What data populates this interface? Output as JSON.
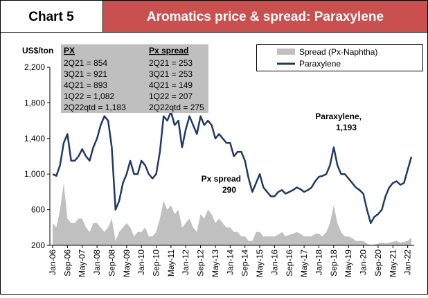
{
  "chart_data": {
    "type": "line",
    "label": "Chart 5",
    "title": "Aromatics price & spread: Paraxylene",
    "y_label": "US$/ton",
    "categories": [
      "Jan-06",
      null,
      null,
      null,
      "Sep-06",
      null,
      null,
      null,
      "May-07",
      null,
      null,
      null,
      "Jan-08",
      null,
      null,
      null,
      "Sep-08",
      null,
      null,
      null,
      "May-09",
      null,
      null,
      null,
      "Jan-10",
      null,
      null,
      null,
      "Sep-10",
      null,
      null,
      null,
      "May-11",
      null,
      null,
      null,
      "Jan-12",
      null,
      null,
      null,
      "Sep-12",
      null,
      null,
      null,
      "May-13",
      null,
      null,
      null,
      "Jan-14",
      null,
      null,
      null,
      "Sep-14",
      null,
      null,
      null,
      "May-15",
      null,
      null,
      null,
      "Jan-16",
      null,
      null,
      null,
      "Sep-16",
      null,
      null,
      null,
      "May-17",
      null,
      null,
      null,
      "Jan-18",
      null,
      null,
      null,
      "Sep-18",
      null,
      null,
      null,
      "May-19",
      null,
      null,
      null,
      "Jan-20",
      null,
      null,
      null,
      "Sep-20",
      null,
      null,
      null,
      "May-21",
      null,
      null,
      null,
      "Jan-22",
      null
    ],
    "series": [
      {
        "name": "Spread (Px-Naphtha)",
        "kind": "area",
        "color": "#c0c0c0",
        "values": [
          450,
          400,
          600,
          900,
          500,
          450,
          450,
          500,
          500,
          400,
          350,
          450,
          450,
          400,
          350,
          400,
          500,
          250,
          350,
          400,
          450,
          400,
          300,
          350,
          350,
          400,
          300,
          300,
          350,
          500,
          700,
          600,
          650,
          550,
          600,
          400,
          450,
          500,
          400,
          350,
          550,
          500,
          600,
          550,
          450,
          500,
          450,
          400,
          400,
          350,
          350,
          300,
          300,
          250,
          250,
          350,
          350,
          300,
          300,
          300,
          300,
          320,
          350,
          300,
          320,
          330,
          350,
          330,
          300,
          300,
          300,
          330,
          330,
          300,
          350,
          450,
          650,
          450,
          350,
          300,
          300,
          280,
          250,
          250,
          250,
          220,
          200,
          210,
          220,
          230,
          220,
          230,
          240,
          250,
          230,
          240,
          250,
          290
        ]
      },
      {
        "name": "Paraxylene",
        "kind": "line",
        "color": "#1f3864",
        "values": [
          1000,
          980,
          1100,
          1350,
          1450,
          1150,
          1150,
          1200,
          1280,
          1200,
          1150,
          1300,
          1400,
          1550,
          1650,
          1600,
          1300,
          600,
          700,
          900,
          1000,
          1150,
          1000,
          1000,
          1150,
          1100,
          1000,
          950,
          1000,
          1250,
          1650,
          1600,
          1700,
          1550,
          1600,
          1300,
          1500,
          1650,
          1550,
          1450,
          1650,
          1550,
          1600,
          1550,
          1400,
          1450,
          1400,
          1350,
          1350,
          1200,
          1250,
          1250,
          1150,
          950,
          800,
          900,
          1000,
          850,
          800,
          750,
          750,
          800,
          820,
          780,
          800,
          820,
          850,
          830,
          800,
          820,
          850,
          920,
          970,
          980,
          1000,
          1100,
          1300,
          1100,
          1000,
          1000,
          950,
          900,
          850,
          820,
          780,
          600,
          450,
          520,
          550,
          600,
          750,
          850,
          900,
          920,
          880,
          900,
          1050,
          1193
        ]
      }
    ],
    "ylim": [
      200,
      2200
    ],
    "yticks": [
      200,
      600,
      {
        "value": 1000,
        "label": "1,000"
      },
      {
        "value": 1400,
        "label": "1,400"
      },
      {
        "value": 1800,
        "label": "1,800"
      },
      {
        "value": 2200,
        "label": "2,200"
      }
    ],
    "grid": false,
    "legend": "top-right",
    "annotations": [
      "Paraxylene,",
      "1,193",
      "Px spread",
      "290"
    ],
    "table": {
      "headers": [
        "PX",
        "Px spread"
      ],
      "columns": [
        [
          "2Q21 = 854",
          "3Q21 = 921",
          "4Q21 = 893",
          "1Q22 = 1,082",
          "2Q22qtd = 1,183"
        ],
        [
          "2Q21 = 253",
          "3Q21 = 253",
          "4Q21 = 149",
          "1Q22 = 207",
          "2Q22qtd = 275"
        ]
      ]
    }
  }
}
